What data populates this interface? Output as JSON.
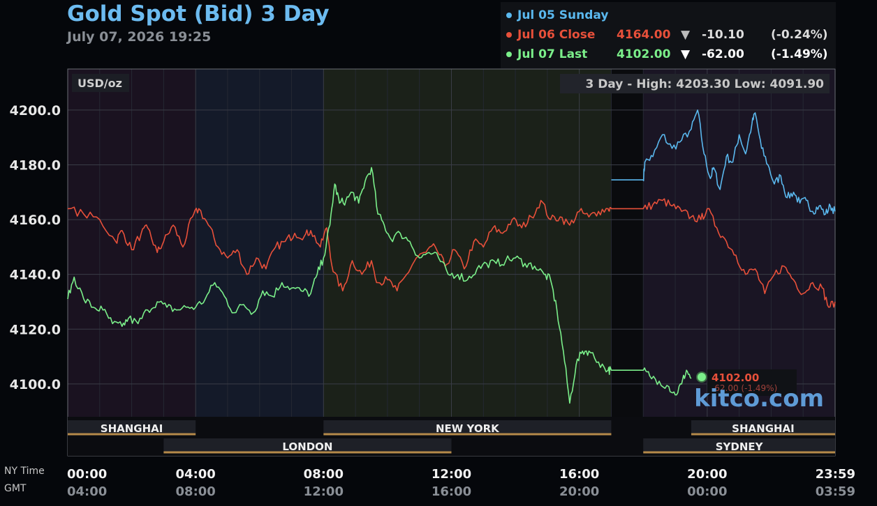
{
  "header": {
    "title": "Gold Spot (Bid) 3 Day",
    "timestamp": "July 07, 2026 19:25"
  },
  "legend": [
    {
      "label": "Jul 05 Sunday",
      "value": "",
      "arrow": "",
      "change": "",
      "pct": "",
      "color": "#5ab8ee"
    },
    {
      "label": "Jul 06 Close",
      "value": "4164.00",
      "arrow": "▼",
      "change": "-10.10",
      "pct": "(-0.24%)",
      "color": "#e8503a"
    },
    {
      "label": "Jul 07 Last",
      "value": "4102.00",
      "arrow": "▼",
      "change": "-62.00",
      "pct": "(-1.49%)",
      "color": "#7bef8a"
    }
  ],
  "axis": {
    "ny_time_label": "NY Time",
    "gmt_label": "GMT"
  },
  "watermark": "kitco.com",
  "chart_data": {
    "type": "line",
    "unit_label": "USD/oz",
    "range_text": "3 Day - High: 4203.30  Low: 4091.90",
    "ylim": [
      4088,
      4215
    ],
    "y_ticks": [
      "4100.0",
      "4120.0",
      "4140.0",
      "4160.0",
      "4180.0",
      "4200.0"
    ],
    "y_tick_values": [
      4100,
      4120,
      4140,
      4160,
      4180,
      4200
    ],
    "x_range_hours": [
      0,
      24
    ],
    "x_ticks_ny": [
      "00:00",
      "04:00",
      "08:00",
      "12:00",
      "16:00",
      "20:00",
      "23:59"
    ],
    "x_ticks_gmt": [
      "04:00",
      "08:00",
      "12:00",
      "16:00",
      "20:00",
      "00:00",
      "03:59"
    ],
    "x_tick_hours": [
      0,
      4,
      8,
      12,
      16,
      20,
      24
    ],
    "grid": true,
    "sessions": [
      {
        "name": "SHANGHAI",
        "start": 0,
        "end": 4,
        "row": 1
      },
      {
        "name": "NEW YORK",
        "start": 8,
        "end": 17,
        "row": 1
      },
      {
        "name": "SHANGHAI",
        "start": 19.5,
        "end": 24,
        "row": 1
      },
      {
        "name": "LONDON",
        "start": 3,
        "end": 12,
        "row": 2
      },
      {
        "name": "SYDNEY",
        "start": 18,
        "end": 24,
        "row": 2
      }
    ],
    "last_point": {
      "label": "4102.00",
      "sub_label": "-62.00 (-1.49%)",
      "hour": 19.5,
      "value": 4102.0
    },
    "series": [
      {
        "name": "Jul 05 Sunday",
        "color": "#5ab8ee",
        "x": [
          17,
          18,
          18.05,
          18.3,
          18.6,
          18.9,
          19.2,
          19.5,
          19.7,
          19.9,
          20.1,
          20.2,
          20.4,
          20.6,
          20.8,
          21.0,
          21.2,
          21.4,
          21.5,
          21.7,
          21.9,
          22.1,
          22.3,
          22.5,
          22.7,
          22.9,
          23.1,
          23.3,
          23.5,
          23.7,
          23.85,
          24
        ],
        "y": [
          4174.5,
          4174.5,
          4181,
          4183,
          4191,
          4186,
          4189,
          4193,
          4200,
          4184,
          4175,
          4179,
          4171,
          4183,
          4181,
          4191,
          4184,
          4195,
          4199,
          4186,
          4180,
          4173,
          4176,
          4168,
          4170,
          4166,
          4167,
          4163,
          4165,
          4162,
          4165,
          4163
        ]
      },
      {
        "name": "Jul 06 Close",
        "color": "#e8503a",
        "x": [
          0,
          0.5,
          1.0,
          1.5,
          1.7,
          2.0,
          2.3,
          2.5,
          2.8,
          3.0,
          3.3,
          3.6,
          3.9,
          4.1,
          4.4,
          4.7,
          5.0,
          5.3,
          5.6,
          5.9,
          6.2,
          6.5,
          6.8,
          7.1,
          7.4,
          7.6,
          7.9,
          8.1,
          8.3,
          8.6,
          8.9,
          9.2,
          9.5,
          9.7,
          10.0,
          10.3,
          10.6,
          10.9,
          11.2,
          11.5,
          11.8,
          12.1,
          12.4,
          12.7,
          13.0,
          13.3,
          13.6,
          13.9,
          14.2,
          14.5,
          14.8,
          15.1,
          15.4,
          15.7,
          16.0,
          16.3,
          16.6,
          16.9,
          17,
          18,
          18.3,
          18.6,
          18.9,
          19.2,
          19.5,
          19.8,
          20.0,
          20.3,
          20.6,
          20.9,
          21.2,
          21.5,
          21.8,
          22.1,
          22.4,
          22.7,
          23.0,
          23.3,
          23.6,
          23.8,
          24
        ],
        "y": [
          4164,
          4162,
          4160,
          4152,
          4156,
          4149,
          4155,
          4157,
          4148,
          4152,
          4158,
          4150,
          4161,
          4164,
          4158,
          4150,
          4146,
          4149,
          4140,
          4146,
          4142,
          4150,
          4152,
          4155,
          4154,
          4156,
          4150,
          4157,
          4141,
          4134,
          4145,
          4140,
          4145,
          4137,
          4138,
          4134,
          4140,
          4146,
          4148,
          4150,
          4143,
          4149,
          4142,
          4152,
          4150,
          4157,
          4155,
          4160,
          4157,
          4161,
          4167,
          4160,
          4161,
          4158,
          4163,
          4161,
          4163,
          4164,
          4164,
          4164,
          4165.5,
          4167,
          4165,
          4163,
          4161,
          4160,
          4164,
          4157,
          4152,
          4147,
          4140,
          4142,
          4133,
          4140,
          4143,
          4138,
          4133,
          4137,
          4135,
          4128,
          4130
        ]
      },
      {
        "name": "Jul 07 Last",
        "color": "#7bef8a",
        "x": [
          0,
          0.2,
          0.5,
          0.8,
          1.1,
          1.4,
          1.7,
          1.9,
          2.2,
          2.5,
          2.8,
          3.1,
          3.4,
          3.7,
          4.0,
          4.3,
          4.6,
          4.9,
          5.2,
          5.5,
          5.8,
          6.1,
          6.4,
          6.7,
          7.0,
          7.3,
          7.6,
          7.8,
          8.0,
          8.2,
          8.35,
          8.5,
          8.7,
          8.9,
          9.1,
          9.3,
          9.5,
          9.7,
          9.9,
          10.1,
          10.4,
          10.7,
          11.0,
          11.3,
          11.6,
          11.9,
          12.2,
          12.5,
          12.8,
          13.1,
          13.4,
          13.7,
          14.0,
          14.3,
          14.6,
          14.9,
          15.1,
          15.3,
          15.5,
          15.7,
          15.9,
          16.1,
          16.3,
          16.6,
          16.9,
          17,
          18,
          18.2,
          18.5,
          18.8,
          19.0,
          19.2,
          19.35,
          19.5
        ],
        "y": [
          4131,
          4139,
          4131,
          4128,
          4127,
          4122,
          4121,
          4124,
          4122,
          4127,
          4130,
          4128,
          4127,
          4128,
          4128,
          4131,
          4137,
          4132,
          4126,
          4129,
          4126,
          4134,
          4132,
          4137,
          4135,
          4134,
          4133,
          4140,
          4146,
          4158,
          4173,
          4166,
          4167,
          4170,
          4166,
          4174,
          4179,
          4162,
          4158,
          4153,
          4155,
          4152,
          4146,
          4148,
          4146,
          4140,
          4140,
          4138,
          4142,
          4144,
          4144,
          4145,
          4146,
          4144,
          4143,
          4140,
          4138,
          4127,
          4112,
          4093,
          4107,
          4112,
          4112,
          4108,
          4105,
          4105,
          4105,
          4103,
          4101,
          4099,
          4096,
          4100,
          4105,
          4102
        ]
      }
    ]
  }
}
